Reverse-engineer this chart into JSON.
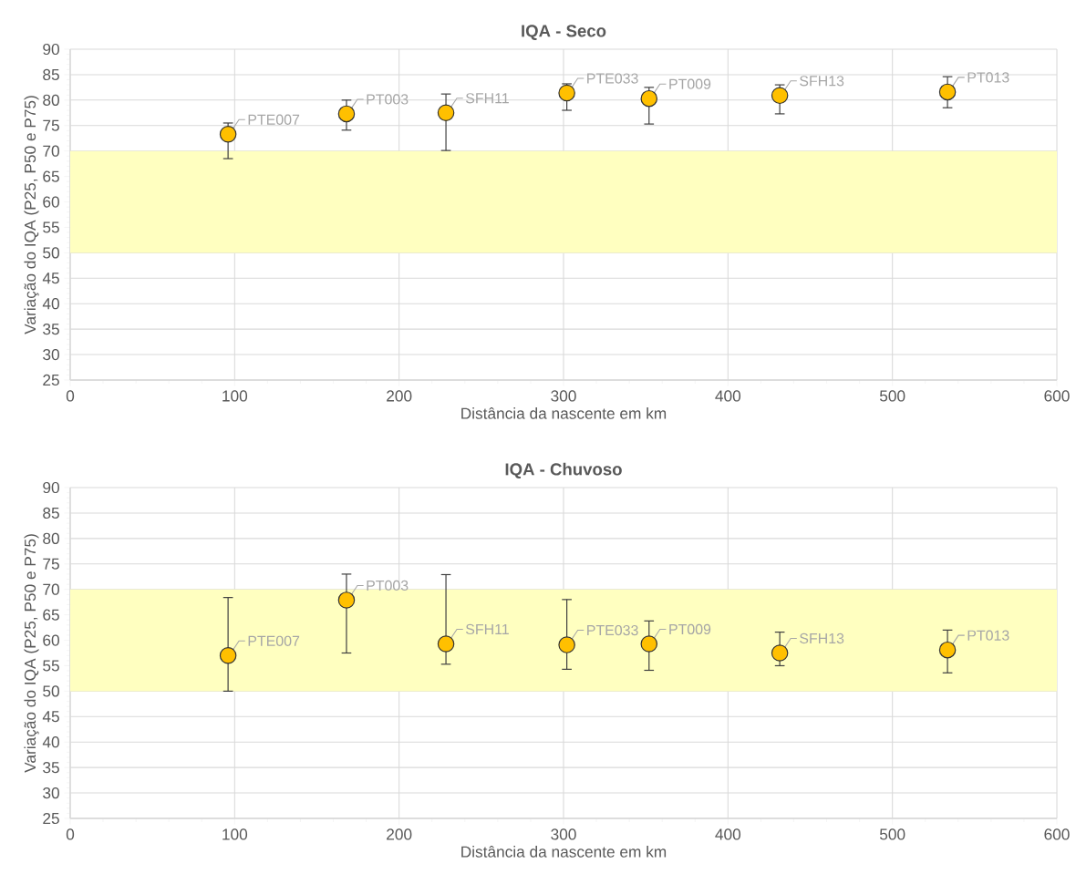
{
  "chart_data": [
    {
      "type": "scatter",
      "title": "IQA - Seco",
      "xlabel": "Distância da nascente em km",
      "ylabel": "Variação do IQA (P25, P50 e P75)",
      "x": [
        96,
        168,
        228.5,
        302,
        352,
        431.5,
        533.5
      ],
      "values": [
        73.3,
        77.3,
        77.5,
        81.4,
        80.3,
        80.9,
        81.6
      ],
      "errors": [
        [
          68.5,
          75.5
        ],
        [
          74.1,
          80
        ],
        [
          70.1,
          81.2
        ],
        [
          78,
          83.2
        ],
        [
          75.3,
          82.5
        ],
        [
          77.3,
          83
        ],
        [
          78.5,
          84.6
        ]
      ],
      "color": "#ffc000",
      "marker": "circle",
      "grid": true,
      "xlim": [
        0,
        600
      ],
      "ylim": [
        25,
        90
      ],
      "xticks": [
        0,
        100,
        200,
        300,
        400,
        500,
        600
      ],
      "yticks": [
        25,
        30,
        35,
        40,
        45,
        50,
        55,
        60,
        65,
        70,
        75,
        80,
        85,
        90
      ],
      "bands": [
        {
          "axis": "y",
          "from": 50,
          "to": 70,
          "color": "#ffffc0"
        }
      ],
      "annotations": [
        {
          "text": "PTE007",
          "x": 96,
          "y": 73.3
        },
        {
          "text": "PT003",
          "x": 168,
          "y": 77.3
        },
        {
          "text": "SFH11",
          "x": 228.5,
          "y": 77.5
        },
        {
          "text": "PTE033",
          "x": 302,
          "y": 81.4
        },
        {
          "text": "PT009",
          "x": 352,
          "y": 80.3
        },
        {
          "text": "SFH13",
          "x": 431.5,
          "y": 80.9
        },
        {
          "text": "PT013",
          "x": 533.5,
          "y": 81.6
        }
      ]
    },
    {
      "type": "scatter",
      "title": "IQA - Chuvoso",
      "xlabel": "Distância da nascente em km",
      "ylabel": "Variação do IQA (P25, P50 e P75)",
      "x": [
        96,
        168,
        228.5,
        302,
        352,
        431.5,
        533.5
      ],
      "values": [
        57,
        67.9,
        59.3,
        59.1,
        59.3,
        57.5,
        58.1
      ],
      "errors": [
        [
          50,
          68.4
        ],
        [
          57.5,
          73
        ],
        [
          55.3,
          72.9
        ],
        [
          54.3,
          68
        ],
        [
          54.1,
          63.8
        ],
        [
          55,
          61.6
        ],
        [
          53.6,
          62
        ]
      ],
      "color": "#ffc000",
      "marker": "circle",
      "grid": true,
      "xlim": [
        0,
        600
      ],
      "ylim": [
        25,
        90
      ],
      "xticks": [
        0,
        100,
        200,
        300,
        400,
        500,
        600
      ],
      "yticks": [
        25,
        30,
        35,
        40,
        45,
        50,
        55,
        60,
        65,
        70,
        75,
        80,
        85,
        90
      ],
      "bands": [
        {
          "axis": "y",
          "from": 50,
          "to": 70,
          "color": "#ffffc0"
        }
      ],
      "annotations": [
        {
          "text": "PTE007",
          "x": 96,
          "y": 57
        },
        {
          "text": "PT003",
          "x": 168,
          "y": 67.9
        },
        {
          "text": "SFH11",
          "x": 228.5,
          "y": 59.3
        },
        {
          "text": "PTE033",
          "x": 302,
          "y": 59.1
        },
        {
          "text": "PT009",
          "x": 352,
          "y": 59.3
        },
        {
          "text": "SFH13",
          "x": 431.5,
          "y": 57.5
        },
        {
          "text": "PT013",
          "x": 533.5,
          "y": 58.1
        }
      ]
    }
  ]
}
